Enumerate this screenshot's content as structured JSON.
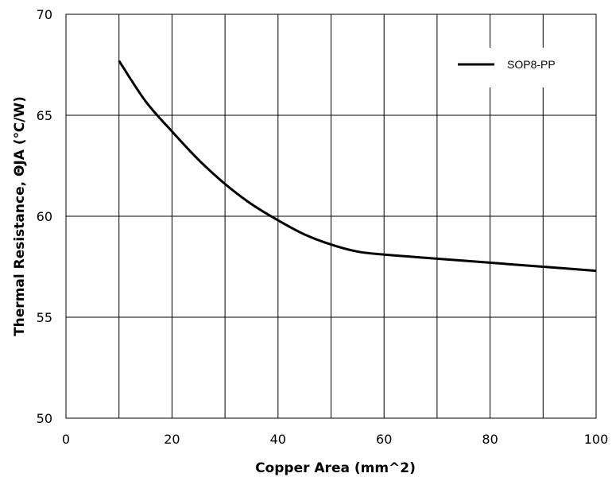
{
  "chart_data": {
    "type": "line",
    "xlabel": "Copper Area (mm^2)",
    "ylabel": "Thermal Resistance, ΘJA (℃/W)",
    "xlim": [
      0,
      100
    ],
    "ylim": [
      50,
      70
    ],
    "x_ticks": [
      "0",
      "20",
      "40",
      "60",
      "80",
      "100"
    ],
    "y_ticks": [
      "50",
      "55",
      "60",
      "65",
      "70"
    ],
    "x_grid_step": 10,
    "y_grid_step": 5,
    "grid": true,
    "legend_position": "top-right",
    "series": [
      {
        "name": "SOP8-PP",
        "color": "#000000",
        "x": [
          10,
          15,
          20,
          25,
          30,
          35,
          40,
          45,
          50,
          55,
          60,
          70,
          80,
          90,
          100
        ],
        "y": [
          67.7,
          65.7,
          64.2,
          62.8,
          61.6,
          60.6,
          59.8,
          59.1,
          58.6,
          58.25,
          58.1,
          57.9,
          57.7,
          57.5,
          57.3
        ]
      }
    ]
  }
}
